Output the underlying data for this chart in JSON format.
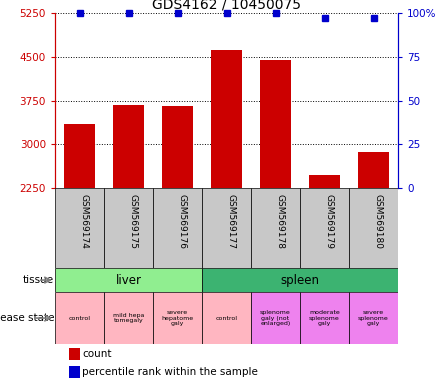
{
  "title": "GDS4162 / 10450075",
  "samples": [
    "GSM569174",
    "GSM569175",
    "GSM569176",
    "GSM569177",
    "GSM569178",
    "GSM569179",
    "GSM569180"
  ],
  "counts": [
    3350,
    3680,
    3650,
    4620,
    4450,
    2480,
    2870
  ],
  "percentile_ranks": [
    100,
    100,
    100,
    100,
    100,
    97,
    97
  ],
  "ymin": 2250,
  "ymax": 5250,
  "yticks": [
    2250,
    3000,
    3750,
    4500,
    5250
  ],
  "right_yticks": [
    0,
    25,
    50,
    75,
    100
  ],
  "right_ytick_labels": [
    "0",
    "25",
    "50",
    "75",
    "100%"
  ],
  "bar_color": "#cc0000",
  "percentile_color": "#0000cc",
  "tissue_groups": [
    {
      "label": "liver",
      "start": 0,
      "end": 3,
      "color": "#90ee90"
    },
    {
      "label": "spleen",
      "start": 3,
      "end": 7,
      "color": "#3cb371"
    }
  ],
  "disease_states": [
    {
      "label": "control",
      "start": 0,
      "end": 1,
      "color": "#ffb6c1"
    },
    {
      "label": "mild hepa\ntomegaly",
      "start": 1,
      "end": 2,
      "color": "#ffb6c1"
    },
    {
      "label": "severe\nhepatome\ngaly",
      "start": 2,
      "end": 3,
      "color": "#ffb6c1"
    },
    {
      "label": "control",
      "start": 3,
      "end": 4,
      "color": "#ffb6c1"
    },
    {
      "label": "splenome\ngaly (not\nenlarged)",
      "start": 4,
      "end": 5,
      "color": "#ee82ee"
    },
    {
      "label": "moderate\nsplenome\ngaly",
      "start": 5,
      "end": 6,
      "color": "#ee82ee"
    },
    {
      "label": "severe\nsplenome\ngaly",
      "start": 6,
      "end": 7,
      "color": "#ee82ee"
    }
  ],
  "sample_bg_color": "#c8c8c8",
  "legend_count_color": "#cc0000",
  "legend_percentile_color": "#0000cc",
  "left_label_tissue": "tissue",
  "left_label_disease": "disease state"
}
